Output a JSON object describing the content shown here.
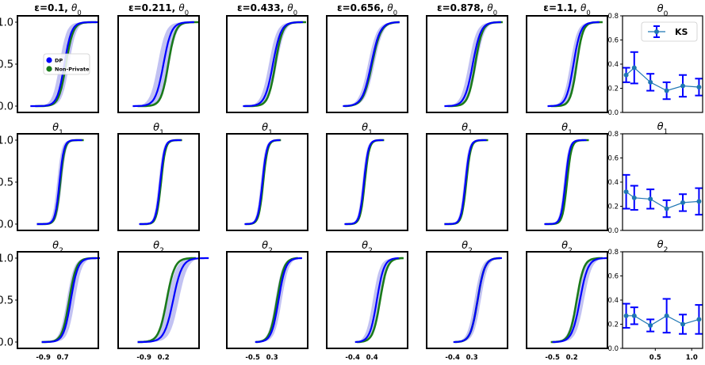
{
  "chart_data": {
    "type": "line",
    "description_kind": "grid of empirical CDF plots with KS error-bar column",
    "epsilons": [
      0.1,
      0.211,
      0.433,
      0.656,
      0.878,
      1.1
    ],
    "column_titles": [
      "ε=0.1, θ0",
      "ε=0.211, θ0",
      "ε=0.433, θ0",
      "ε=0.656, θ0",
      "ε=0.878, θ0",
      "ε=1.1, θ0"
    ],
    "row_titles": [
      "θ0",
      "θ1",
      "θ2"
    ],
    "ks_titles": [
      "θ0",
      "θ1",
      "θ2"
    ],
    "cdf_ylim": [
      0,
      1
    ],
    "cdf_yticks": [
      "0.0",
      "0.5",
      "1.0"
    ],
    "cdf_xticks_bottom": [
      [
        "-0.9",
        "0.7"
      ],
      [
        "-0.9",
        "0.2"
      ],
      [
        "-0.5",
        "0.3"
      ],
      [
        "-0.4",
        "0.4"
      ],
      [
        "-0.4",
        "0.3"
      ],
      [
        "-0.5",
        "0.2"
      ]
    ],
    "legend": {
      "placement": "inside first panel, middle-left",
      "entries": [
        {
          "label": "DP",
          "color": "#0000ff"
        },
        {
          "label": "Non-Private",
          "color": "#1a7a1a"
        }
      ]
    },
    "ks_legend": {
      "label": "KS",
      "placement": "top-right"
    },
    "ks_ylim": [
      0.0,
      0.8
    ],
    "ks_yticks": [
      "0.0",
      "0.2",
      "0.4",
      "0.6",
      "0.8"
    ],
    "ks_xlim": [
      0.05,
      1.15
    ],
    "ks_xticks": [
      "0.5",
      "1.0"
    ],
    "ks_series": [
      {
        "param": "θ0",
        "mean": [
          0.31,
          0.37,
          0.25,
          0.18,
          0.22,
          0.21
        ],
        "err": [
          0.06,
          0.13,
          0.07,
          0.07,
          0.09,
          0.07
        ]
      },
      {
        "param": "θ1",
        "mean": [
          0.32,
          0.27,
          0.26,
          0.18,
          0.23,
          0.24
        ],
        "err": [
          0.14,
          0.1,
          0.08,
          0.07,
          0.07,
          0.11
        ]
      },
      {
        "param": "θ2",
        "mean": [
          0.27,
          0.27,
          0.19,
          0.27,
          0.2,
          0.24
        ],
        "err": [
          0.1,
          0.07,
          0.05,
          0.14,
          0.08,
          0.12
        ]
      }
    ],
    "cdf_curves": [
      [
        {
          "dp": [
            0.16,
            0.58,
            0.08
          ],
          "np": [
            0.22,
            0.6,
            0.08
          ],
          "band": 0.06
        },
        {
          "dp": [
            0.18,
            0.56,
            0.09
          ],
          "np": [
            0.24,
            0.62,
            0.08
          ],
          "band": 0.07
        },
        {
          "dp": [
            0.2,
            0.57,
            0.09
          ],
          "np": [
            0.22,
            0.6,
            0.08
          ],
          "band": 0.05
        },
        {
          "dp": [
            0.2,
            0.55,
            0.1
          ],
          "np": [
            0.22,
            0.56,
            0.1
          ],
          "band": 0.04
        },
        {
          "dp": [
            0.22,
            0.57,
            0.09
          ],
          "np": [
            0.26,
            0.6,
            0.08
          ],
          "band": 0.05
        },
        {
          "dp": [
            0.26,
            0.58,
            0.08
          ],
          "np": [
            0.3,
            0.62,
            0.07
          ],
          "band": 0.04
        }
      ],
      [
        {
          "dp": [
            0.24,
            0.52,
            0.05
          ],
          "np": [
            0.24,
            0.53,
            0.05
          ],
          "band": 0.03
        },
        {
          "dp": [
            0.26,
            0.52,
            0.05
          ],
          "np": [
            0.27,
            0.53,
            0.05
          ],
          "band": 0.02
        },
        {
          "dp": [
            0.22,
            0.44,
            0.05
          ],
          "np": [
            0.23,
            0.45,
            0.05
          ],
          "band": 0.02
        },
        {
          "dp": [
            0.22,
            0.46,
            0.05
          ],
          "np": [
            0.23,
            0.47,
            0.05
          ],
          "band": 0.02
        },
        {
          "dp": [
            0.22,
            0.48,
            0.05
          ],
          "np": [
            0.22,
            0.49,
            0.05
          ],
          "band": 0.02
        },
        {
          "dp": [
            0.22,
            0.48,
            0.05
          ],
          "np": [
            0.23,
            0.5,
            0.05
          ],
          "band": 0.02
        }
      ],
      [
        {
          "dp": [
            0.3,
            0.66,
            0.08
          ],
          "np": [
            0.3,
            0.64,
            0.08
          ],
          "band": 0.05
        },
        {
          "dp": [
            0.24,
            0.68,
            0.1
          ],
          "np": [
            0.24,
            0.6,
            0.09
          ],
          "band": 0.07
        },
        {
          "dp": [
            0.35,
            0.64,
            0.08
          ],
          "np": [
            0.36,
            0.62,
            0.08
          ],
          "band": 0.04
        },
        {
          "dp": [
            0.35,
            0.62,
            0.08
          ],
          "np": [
            0.37,
            0.66,
            0.08
          ],
          "band": 0.05
        },
        {
          "dp": [
            0.33,
            0.63,
            0.08
          ],
          "np": [
            0.35,
            0.63,
            0.08
          ],
          "band": 0.04
        },
        {
          "dp": [
            0.32,
            0.66,
            0.09
          ],
          "np": [
            0.3,
            0.62,
            0.08
          ],
          "band": 0.05
        }
      ]
    ]
  }
}
